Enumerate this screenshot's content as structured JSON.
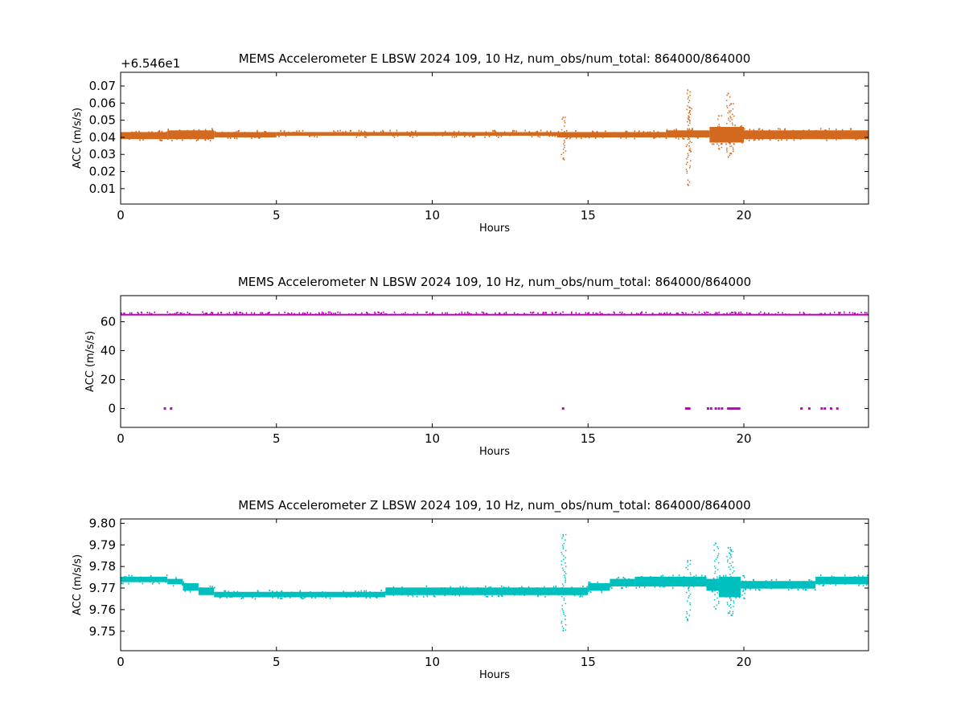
{
  "chart_data": [
    {
      "type": "scatter",
      "title": "MEMS Accelerometer E LBSW 2024 109, 10 Hz, num_obs/num_total: 864000/864000",
      "xlabel": "Hours",
      "ylabel": "ACC (m/s/s)",
      "y_offset_label": "+6.546e1",
      "color": "#d2691e",
      "xlim": [
        0,
        24
      ],
      "ylim": [
        0.001,
        0.078
      ],
      "xticks": [
        0,
        5,
        10,
        15,
        20
      ],
      "yticks": [
        0.01,
        0.02,
        0.03,
        0.04,
        0.05,
        0.06,
        0.07
      ],
      "ytick_labels": [
        "0.01",
        "0.02",
        "0.03",
        "0.04",
        "0.05",
        "0.06",
        "0.07"
      ],
      "band": [
        {
          "x": [
            0,
            1.5
          ],
          "y": [
            0.038,
            0.044
          ]
        },
        {
          "x": [
            1.5,
            3.0
          ],
          "y": [
            0.038,
            0.045
          ]
        },
        {
          "x": [
            3.0,
            5.0
          ],
          "y": [
            0.039,
            0.044
          ]
        },
        {
          "x": [
            5.0,
            14.0
          ],
          "y": [
            0.04,
            0.044
          ]
        },
        {
          "x": [
            14.0,
            17.5
          ],
          "y": [
            0.039,
            0.044
          ]
        },
        {
          "x": [
            17.5,
            18.9
          ],
          "y": [
            0.039,
            0.045
          ]
        },
        {
          "x": [
            18.9,
            20.0
          ],
          "y": [
            0.036,
            0.047
          ]
        },
        {
          "x": [
            20.0,
            24.0
          ],
          "y": [
            0.038,
            0.045
          ]
        }
      ],
      "spikes": [
        {
          "x": 14.2,
          "y": [
            0.027,
            0.052
          ]
        },
        {
          "x": 18.2,
          "y": [
            0.012,
            0.068
          ]
        },
        {
          "x": 19.5,
          "y": [
            0.028,
            0.066
          ]
        },
        {
          "x": 19.6,
          "y": [
            0.03,
            0.06
          ]
        },
        {
          "x": 19.2,
          "y": [
            0.033,
            0.053
          ]
        },
        {
          "x": 18.25,
          "y": [
            0.032,
            0.058
          ]
        }
      ]
    },
    {
      "type": "scatter",
      "title": "MEMS Accelerometer N LBSW 2024 109, 10 Hz, num_obs/num_total: 864000/864000",
      "xlabel": "Hours",
      "ylabel": "ACC (m/s/s)",
      "color": "#bf00bf",
      "xlim": [
        0,
        24
      ],
      "ylim": [
        -13,
        78
      ],
      "xticks": [
        0,
        5,
        10,
        15,
        20
      ],
      "yticks": [
        0,
        20,
        40,
        60
      ],
      "ytick_labels": [
        "0",
        "20",
        "40",
        "60"
      ],
      "band": [
        {
          "x": [
            0,
            24
          ],
          "y": [
            65.0,
            66.5
          ]
        }
      ],
      "zero_points_x": [
        1.42,
        1.62,
        14.2,
        18.15,
        18.2,
        18.25,
        18.85,
        18.95,
        19.1,
        19.2,
        19.3,
        19.5,
        19.55,
        19.6,
        19.65,
        19.7,
        19.75,
        19.8,
        19.85,
        21.85,
        22.1,
        22.5,
        22.6,
        22.8,
        23.0
      ]
    },
    {
      "type": "scatter",
      "title": "MEMS Accelerometer Z LBSW 2024 109, 10 Hz, num_obs/num_total: 864000/864000",
      "xlabel": "Hours",
      "ylabel": "ACC (m/s/s)",
      "color": "#00bfbf",
      "xlim": [
        0,
        24
      ],
      "ylim": [
        9.741,
        9.802
      ],
      "xticks": [
        0,
        5,
        10,
        15,
        20
      ],
      "yticks": [
        9.75,
        9.76,
        9.77,
        9.78,
        9.79,
        9.8
      ],
      "ytick_labels": [
        "9.75",
        "9.76",
        "9.77",
        "9.78",
        "9.79",
        "9.80"
      ],
      "band": [
        {
          "x": [
            0,
            1.5
          ],
          "y": [
            9.772,
            9.776
          ]
        },
        {
          "x": [
            1.5,
            2.0
          ],
          "y": [
            9.771,
            9.775
          ]
        },
        {
          "x": [
            2.0,
            2.5
          ],
          "y": [
            9.768,
            9.773
          ]
        },
        {
          "x": [
            2.5,
            3.0
          ],
          "y": [
            9.766,
            9.771
          ]
        },
        {
          "x": [
            3.0,
            8.5
          ],
          "y": [
            9.765,
            9.769
          ]
        },
        {
          "x": [
            8.5,
            15.0
          ],
          "y": [
            9.766,
            9.771
          ]
        },
        {
          "x": [
            15.0,
            15.7
          ],
          "y": [
            9.768,
            9.773
          ]
        },
        {
          "x": [
            15.7,
            16.5
          ],
          "y": [
            9.77,
            9.775
          ]
        },
        {
          "x": [
            16.5,
            18.8
          ],
          "y": [
            9.77,
            9.776
          ]
        },
        {
          "x": [
            18.8,
            19.2
          ],
          "y": [
            9.768,
            9.775
          ]
        },
        {
          "x": [
            19.2,
            19.9
          ],
          "y": [
            9.765,
            9.776
          ]
        },
        {
          "x": [
            19.9,
            22.3
          ],
          "y": [
            9.769,
            9.774
          ]
        },
        {
          "x": [
            22.3,
            24.0
          ],
          "y": [
            9.771,
            9.776
          ]
        }
      ],
      "spikes": [
        {
          "x": 14.2,
          "y": [
            9.75,
            9.795
          ]
        },
        {
          "x": 18.2,
          "y": [
            9.755,
            9.783
          ]
        },
        {
          "x": 19.1,
          "y": [
            9.76,
            9.791
          ]
        },
        {
          "x": 19.5,
          "y": [
            9.758,
            9.789
          ]
        },
        {
          "x": 19.6,
          "y": [
            9.757,
            9.788
          ]
        },
        {
          "x": 20.0,
          "y": [
            9.765,
            9.776
          ]
        }
      ]
    }
  ]
}
